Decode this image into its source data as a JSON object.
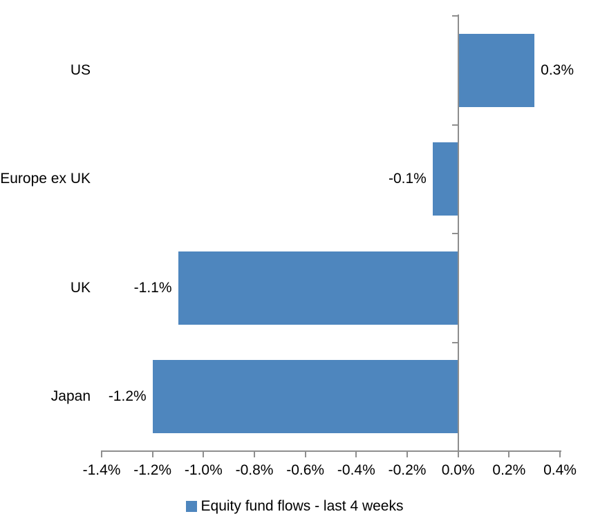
{
  "chart_data": {
    "type": "bar",
    "orientation": "horizontal",
    "title": "",
    "xlabel": "",
    "ylabel": "",
    "categories": [
      "US",
      "Europe ex UK",
      "UK",
      "Japan"
    ],
    "values": [
      0.3,
      -0.1,
      -1.1,
      -1.2
    ],
    "value_labels": [
      "0.3%",
      "-0.1%",
      "-1.1%",
      "-1.2%"
    ],
    "series_name": "Equity fund flows - last 4 weeks",
    "unit": "%",
    "xlim": [
      -1.4,
      0.4
    ],
    "xtick_step": 0.2,
    "xtick_labels": [
      "-1.4%",
      "-1.2%",
      "-1.0%",
      "-0.8%",
      "-0.6%",
      "-0.4%",
      "-0.2%",
      "0.0%",
      "0.2%",
      "0.4%"
    ],
    "grid": false,
    "legend_position": "bottom",
    "colors": {
      "bar": "#4E86BE",
      "axis": "#8E8E8E",
      "text": "#000000",
      "background": "#FFFFFF"
    }
  }
}
